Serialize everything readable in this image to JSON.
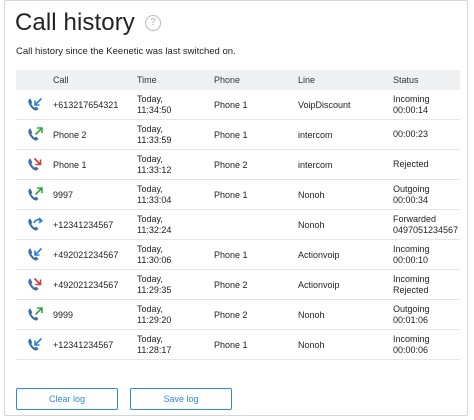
{
  "page": {
    "title": "Call history",
    "help_icon": "?",
    "subtitle": "Call history since the Keenetic was last switched on."
  },
  "table": {
    "headers": [
      "Call",
      "Time",
      "Phone",
      "Line",
      "Status"
    ],
    "rows": [
      {
        "icon": "incoming-call-icon",
        "call": "+613217654321",
        "date": "Today,",
        "time": "11:34:50",
        "phone": "Phone 1",
        "line": "VoipDiscount",
        "status1": "Incoming",
        "status2": "00:00:14"
      },
      {
        "icon": "outgoing-call-icon",
        "call": "Phone 2",
        "date": "Today,",
        "time": "11:33:59",
        "phone": "Phone 1",
        "line": "intercom",
        "status1": "00:00:23",
        "status2": ""
      },
      {
        "icon": "rejected-call-icon",
        "call": "Phone 1",
        "date": "Today,",
        "time": "11:33:12",
        "phone": "Phone 2",
        "line": "intercom",
        "status1": "Rejected",
        "status2": ""
      },
      {
        "icon": "outgoing-call-icon",
        "call": "9997",
        "date": "Today,",
        "time": "11:33:04",
        "phone": "Phone 1",
        "line": "Nonoh",
        "status1": "Outgoing",
        "status2": "00:00:34"
      },
      {
        "icon": "forwarded-call-icon",
        "call": "+12341234567",
        "date": "Today,",
        "time": "11:32:24",
        "phone": "",
        "line": "Nonoh",
        "status1": "Forwarded",
        "status2": "0497051234567"
      },
      {
        "icon": "incoming-call-icon",
        "call": "+492021234567",
        "date": "Today,",
        "time": "11:30:06",
        "phone": "Phone 1",
        "line": "Actionvoip",
        "status1": "Incoming",
        "status2": "00:00:10"
      },
      {
        "icon": "rejected-call-icon",
        "call": "+492021234567",
        "date": "Today,",
        "time": "11:29:35",
        "phone": "Phone 2",
        "line": "Actionvoip",
        "status1": "Incoming",
        "status2": "Rejected"
      },
      {
        "icon": "outgoing-call-icon",
        "call": "9999",
        "date": "Today,",
        "time": "11:29:20",
        "phone": "Phone 2",
        "line": "Nonoh",
        "status1": "Outgoing",
        "status2": "00:01:06"
      },
      {
        "icon": "incoming-call-icon",
        "call": "+12341234567",
        "date": "Today,",
        "time": "11:28:17",
        "phone": "Phone 1",
        "line": "Nonoh",
        "status1": "Incoming",
        "status2": "00:00:06"
      }
    ]
  },
  "buttons": {
    "clear_log": "Clear log",
    "save_log": "Save log"
  },
  "colors": {
    "handset": "#3a6ea5",
    "incoming_arrow": "#2b7fd8",
    "outgoing_arrow": "#2eaa3c",
    "rejected_arrow": "#d83a3a",
    "accent": "#2e8be0"
  }
}
